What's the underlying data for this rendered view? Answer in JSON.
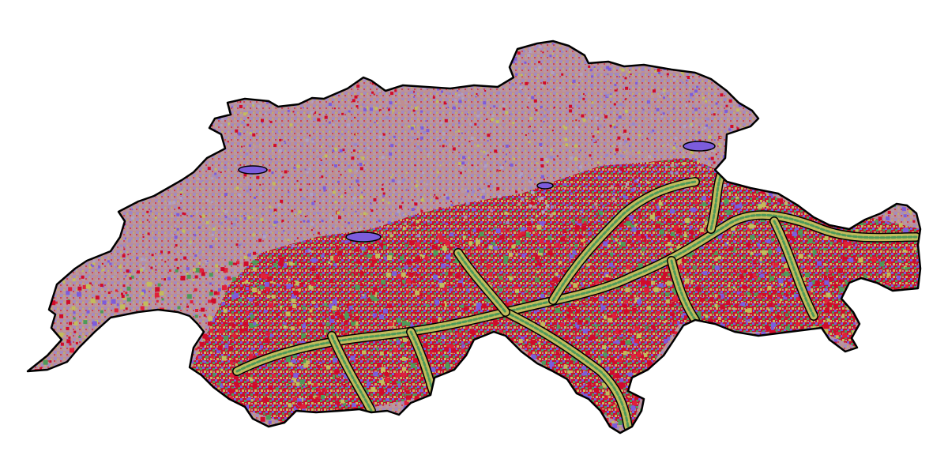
{
  "map": {
    "type": "raster-classified-region",
    "region": "Switzerland",
    "palette": {
      "rose": "#c08f8f",
      "lavender": "#9c88c8",
      "violet": "#7c5cdc",
      "crimson": "#d10a2a",
      "olive": "#c2bc5c",
      "green": "#4e9a5a",
      "outline": "#000000",
      "background": "#ffffff"
    },
    "icons": [
      "map-icon"
    ]
  }
}
